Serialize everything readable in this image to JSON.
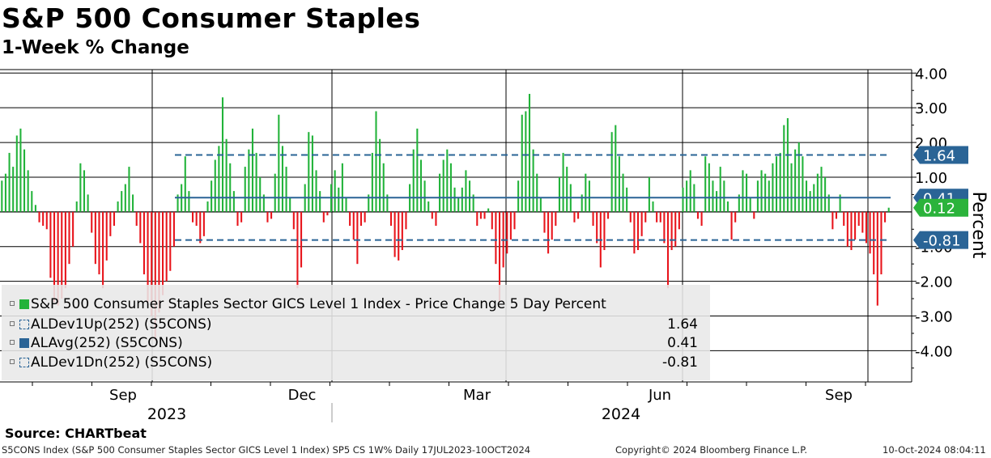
{
  "title": "S&P 500 Consumer Staples",
  "subtitle": "1-Week % Change",
  "source": "Source: CHARTbeat",
  "footer": {
    "left": "S5CONS Index (S&P 500 Consumer Staples Sector GICS Level 1 Index) SP5 CS 1W% Daily 17JUL2023-10OCT2024",
    "middle": "Copyright© 2024 Bloomberg Finance L.P.",
    "right": "10-Oct-2024 08:04:11"
  },
  "legend": [
    {
      "label": "S&P 500 Consumer Staples Sector GICS Level 1 Index - Price Change 5 Day Percent",
      "value": "",
      "swatch": "green"
    },
    {
      "label": "ALDev1Up(252) (S5CONS)",
      "value": "1.64",
      "swatch": "dashed"
    },
    {
      "label": "ALAvg(252) (S5CONS)",
      "value": "0.41",
      "swatch": "navy"
    },
    {
      "label": "ALDev1Dn(252) (S5CONS)",
      "value": "-0.81",
      "swatch": "dashed"
    }
  ],
  "colors": {
    "positive": "#22b33a",
    "negative": "#e8141b",
    "reference": "#2a6496",
    "last_value": "#2bb33b"
  },
  "chart_data": {
    "type": "bar",
    "ylabel": "Percent",
    "ylim": [
      -4.9,
      4.1
    ],
    "yticks": [
      "4.00",
      "3.00",
      "2.00",
      "1.00",
      "-1.00",
      "-2.00",
      "-3.00",
      "-4.00"
    ],
    "month_labels": [
      "Sep",
      "Dec",
      "Mar",
      "Jun",
      "Sep"
    ],
    "year_labels": [
      "2023",
      "2024"
    ],
    "start_date": "2023-07-17",
    "end_date": "2024-10-10",
    "reference_lines": [
      {
        "name": "ALDev1Up(252)",
        "value": 1.64,
        "style": "dashed"
      },
      {
        "name": "ALAvg(252)",
        "value": 0.41,
        "style": "solid"
      },
      {
        "name": "ALDev1Dn(252)",
        "value": -0.81,
        "style": "dashed"
      }
    ],
    "value_tags": [
      {
        "text": "1.64",
        "value": 1.64,
        "color": "#2a6496"
      },
      {
        "text": "0.41",
        "value": 0.41,
        "color": "#2a6496"
      },
      {
        "text": "0.12",
        "value": 0.12,
        "color": "#2bb33b"
      },
      {
        "text": "-0.81",
        "value": -0.81,
        "color": "#2a6496"
      }
    ],
    "values": [
      0.9,
      1.1,
      1.7,
      1.3,
      2.2,
      2.4,
      1.8,
      1.2,
      0.6,
      0.2,
      -0.3,
      -0.4,
      -0.5,
      -1.9,
      -2.6,
      -2.7,
      -2.5,
      -2.2,
      -1.5,
      -1.0,
      0.3,
      1.4,
      1.2,
      0.5,
      -0.6,
      -1.5,
      -1.8,
      -2.2,
      -1.4,
      -0.7,
      -0.4,
      0.3,
      0.6,
      0.8,
      1.3,
      0.5,
      -0.4,
      -0.9,
      -1.8,
      -2.6,
      -3.0,
      -3.7,
      -2.9,
      -2.4,
      -2.0,
      -1.7,
      -1.0,
      0.5,
      0.8,
      1.6,
      0.6,
      -0.3,
      -0.4,
      -0.9,
      -0.7,
      0.3,
      0.9,
      1.5,
      1.9,
      3.3,
      2.1,
      1.4,
      0.6,
      -0.4,
      -0.3,
      1.3,
      1.8,
      2.4,
      1.7,
      1.0,
      0.5,
      -0.3,
      -0.2,
      1.1,
      2.8,
      1.9,
      1.3,
      0.4,
      -0.5,
      -2.2,
      -1.6,
      0.8,
      2.3,
      2.2,
      1.2,
      0.6,
      -0.3,
      -0.1,
      0.8,
      1.2,
      0.7,
      1.4,
      0.4,
      -0.4,
      -0.8,
      -1.5,
      -0.4,
      -0.3,
      0.5,
      1.7,
      2.9,
      2.1,
      1.4,
      0.5,
      -0.4,
      -1.3,
      -1.4,
      -1.1,
      -0.5,
      0.8,
      1.8,
      2.4,
      1.5,
      0.9,
      0.3,
      -0.2,
      -0.4,
      1.1,
      1.5,
      1.8,
      1.4,
      0.7,
      0.4,
      0.7,
      1.2,
      0.9,
      0.5,
      -0.4,
      -0.2,
      -0.2,
      0.1,
      -0.5,
      -1.5,
      -2.6,
      -1.6,
      -1.2,
      -0.8,
      -0.5,
      0.9,
      2.8,
      2.9,
      3.4,
      1.8,
      1.1,
      0.4,
      -0.6,
      -1.2,
      -0.8,
      -0.4,
      1.0,
      1.7,
      1.3,
      0.8,
      -0.3,
      -0.2,
      0.5,
      1.1,
      0.9,
      -0.4,
      -0.9,
      -1.6,
      -1.1,
      -0.2,
      2.3,
      2.5,
      1.6,
      1.1,
      0.7,
      -0.3,
      -1.2,
      -1.1,
      -0.7,
      -0.3,
      1.0,
      0.3,
      -0.3,
      -0.3,
      -0.9,
      -2.2,
      -1.1,
      -1.0,
      -0.5,
      0.7,
      0.9,
      1.2,
      0.8,
      -0.2,
      -0.4,
      1.6,
      1.4,
      0.9,
      0.6,
      1.3,
      0.9,
      0.3,
      -0.8,
      -0.3,
      0.5,
      1.2,
      1.1,
      0.4,
      -0.2,
      0.9,
      1.2,
      1.1,
      0.9,
      1.4,
      1.6,
      1.7,
      2.5,
      2.7,
      1.4,
      1.8,
      2.0,
      1.6,
      0.9,
      0.6,
      0.8,
      1.1,
      1.3,
      1.0,
      0.5,
      -0.5,
      -0.2,
      0.5,
      -0.4,
      -1.0,
      -1.1,
      -0.8,
      -0.4,
      -0.6,
      -0.9,
      -1.2,
      -1.8,
      -2.7,
      -1.8,
      -0.3,
      0.12
    ],
    "plot_x_range": [
      "2023-07-17",
      "2024-10-10"
    ]
  }
}
